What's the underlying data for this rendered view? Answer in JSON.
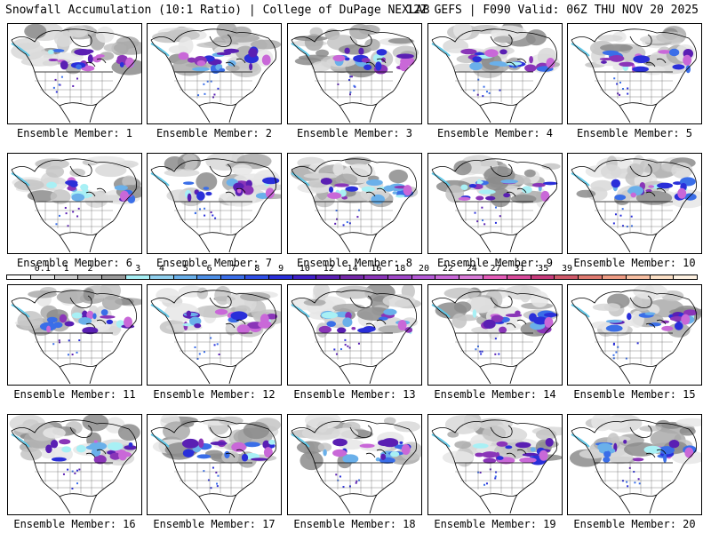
{
  "header": {
    "title": "Snowfall Accumulation (10:1 Ratio) | College of DuPage NEXLAB",
    "run_info": "12Z GEFS | F090 Valid: 06Z THU NOV 20 2025"
  },
  "legend": {
    "labels": [
      "0.1",
      "1",
      "2",
      "3",
      "4",
      "5",
      "6",
      "7",
      "8",
      "9",
      "10",
      "12",
      "14",
      "16",
      "18",
      "20",
      "22",
      "24",
      "27",
      "31",
      "35",
      "39"
    ],
    "colors": [
      "#ffffff",
      "#e6e6e6",
      "#cfcfcf",
      "#b4b4b4",
      "#9a9a9a",
      "#a8f0f5",
      "#90d0ee",
      "#6ab0ea",
      "#4d8fe6",
      "#3a6ee8",
      "#2f4fe6",
      "#2a2fd9",
      "#4020c8",
      "#5a1fb3",
      "#7428a8",
      "#8a35b8",
      "#9f48c8",
      "#b55ad6",
      "#c968d8",
      "#d97cd8",
      "#e35cb8",
      "#d84a9a",
      "#c83c7c",
      "#d05a6a",
      "#e07a70",
      "#ee9c84",
      "#f7bfa2",
      "#fce0c6",
      "#fff2e2"
    ]
  },
  "panels": [
    {
      "label": "Ensemble Member: 1"
    },
    {
      "label": "Ensemble Member: 2"
    },
    {
      "label": "Ensemble Member: 3"
    },
    {
      "label": "Ensemble Member: 4"
    },
    {
      "label": "Ensemble Member: 5"
    },
    {
      "label": "Ensemble Member: 6"
    },
    {
      "label": "Ensemble Member: 7"
    },
    {
      "label": "Ensemble Member: 8"
    },
    {
      "label": "Ensemble Member: 9"
    },
    {
      "label": "Ensemble Member: 10"
    },
    {
      "label": "Ensemble Member: 11"
    },
    {
      "label": "Ensemble Member: 12"
    },
    {
      "label": "Ensemble Member: 13"
    },
    {
      "label": "Ensemble Member: 14"
    },
    {
      "label": "Ensemble Member: 15"
    },
    {
      "label": "Ensemble Member: 16"
    },
    {
      "label": "Ensemble Member: 17"
    },
    {
      "label": "Ensemble Member: 18"
    },
    {
      "label": "Ensemble Member: 19"
    },
    {
      "label": "Ensemble Member: 20"
    }
  ]
}
